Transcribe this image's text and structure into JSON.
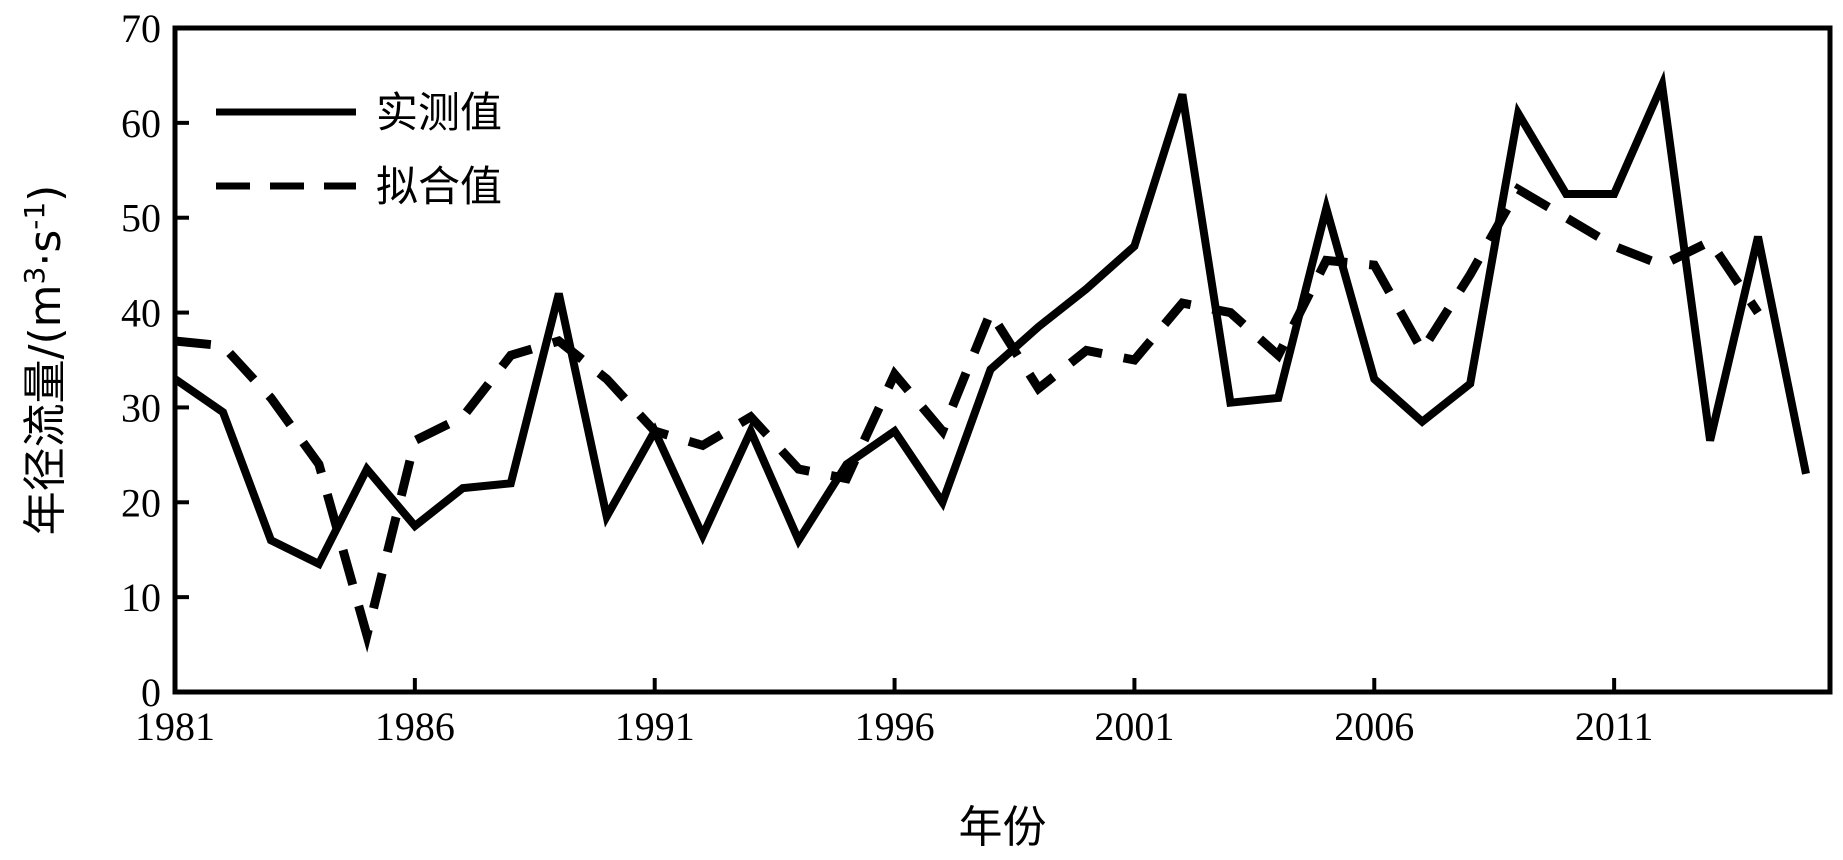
{
  "chart_data": {
    "type": "line",
    "title": "",
    "xlabel": "年份",
    "ylabel": "年径流量/(m³·s⁻¹)",
    "ylabel_parts": {
      "main": "年径流量/(m",
      "sup1": "3",
      "mid": "·s",
      "sup2": "-1",
      "end": ")"
    },
    "xlim": [
      1981,
      2015.5
    ],
    "ylim": [
      0,
      70
    ],
    "xticks": [
      1981,
      1986,
      1991,
      1996,
      2001,
      2006,
      2011
    ],
    "yticks": [
      0,
      10,
      20,
      30,
      40,
      50,
      60,
      70
    ],
    "grid": false,
    "legend_position": "top-left",
    "series": [
      {
        "name": "实测值",
        "style": "solid",
        "color": "#000000",
        "x": [
          1981,
          1982,
          1983,
          1984,
          1985,
          1986,
          1987,
          1988,
          1989,
          1990,
          1991,
          1992,
          1993,
          1994,
          1995,
          1996,
          1997,
          1998,
          1999,
          2000,
          2001,
          2002,
          2003,
          2004,
          2005,
          2006,
          2007,
          2008,
          2009,
          2010,
          2011,
          2012,
          2013,
          2014,
          2015
        ],
        "values": [
          33,
          29.5,
          16,
          13.5,
          23.5,
          17.5,
          21.5,
          22,
          42,
          18.5,
          27.5,
          16.5,
          27.5,
          16,
          24,
          27.5,
          20,
          34,
          38.5,
          42.5,
          47,
          63,
          30.5,
          31,
          51,
          33,
          28.5,
          32.5,
          61,
          52.5,
          52.5,
          64,
          26.5,
          48,
          23
        ]
      },
      {
        "name": "拟合值",
        "style": "dashed",
        "color": "#000000",
        "x": [
          1981,
          1982,
          1983,
          1984,
          1985,
          1986,
          1987,
          1988,
          1989,
          1990,
          1991,
          1992,
          1993,
          1994,
          1995,
          1996,
          1997,
          1998,
          1999,
          2000,
          2001,
          2002,
          2003,
          2004,
          2005,
          2006,
          2007,
          2008,
          2009,
          2010,
          2011,
          2012,
          2013,
          2014
        ],
        "values": [
          37,
          36.5,
          31,
          24,
          6,
          26.5,
          29,
          35.5,
          37,
          33,
          27.5,
          26,
          29,
          23.5,
          22.5,
          33.5,
          27.5,
          40,
          32,
          36,
          35,
          41,
          40,
          35.5,
          45.5,
          45,
          36,
          44,
          53,
          50,
          47,
          45,
          47.5,
          40
        ]
      }
    ]
  }
}
